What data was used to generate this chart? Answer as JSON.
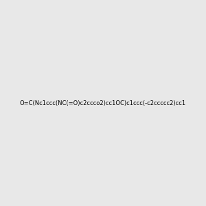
{
  "smiles": "O=C(Nc1ccc(NC(=O)c2ccco2)cc1OC)c1ccc(-c2ccccc2)cc1",
  "title": "",
  "background_color": "#e8e8e8",
  "figure_size": [
    3.0,
    3.0
  ],
  "dpi": 100
}
